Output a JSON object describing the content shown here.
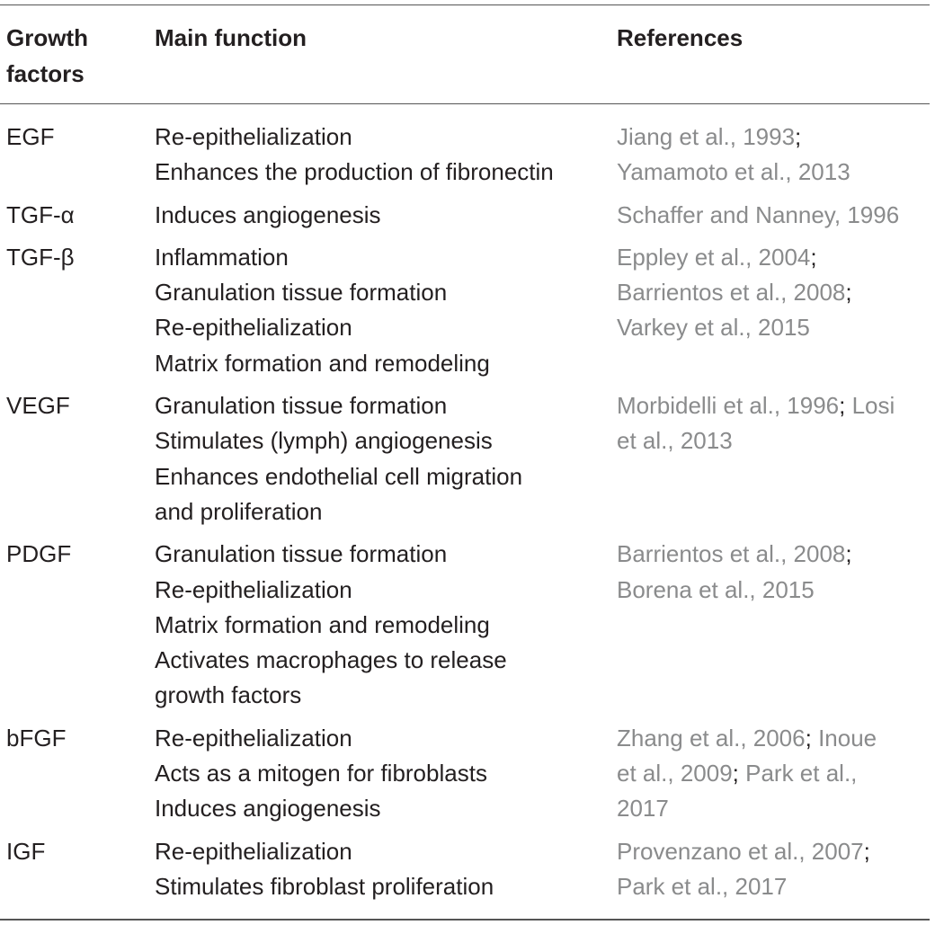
{
  "table": {
    "headers": {
      "factor_line1": "Growth",
      "factor_line2": "factors",
      "function": "Main function",
      "references": "References"
    },
    "rows": [
      {
        "factor": "EGF",
        "functions": [
          "Re-epithelialization",
          "Enhances the production of fibronectin"
        ],
        "refs": [
          {
            "text": "Jiang et al., 1993",
            "sep": ";"
          },
          {
            "text": "Yamamoto et al., 2013",
            "sep": ""
          }
        ]
      },
      {
        "factor": "TGF-α",
        "functions": [
          "Induces angiogenesis"
        ],
        "refs": [
          {
            "text": "Schaffer and Nanney, 1996",
            "sep": ""
          }
        ]
      },
      {
        "factor": "TGF-β",
        "functions": [
          "Inflammation",
          "Granulation tissue formation",
          "Re-epithelialization",
          "Matrix formation and remodeling"
        ],
        "refs": [
          {
            "text": "Eppley et al., 2004",
            "sep": ";"
          },
          {
            "text": "Barrientos et al., 2008",
            "sep": ";"
          },
          {
            "text": "Varkey et al., 2015",
            "sep": ""
          }
        ]
      },
      {
        "factor": "VEGF",
        "functions": [
          "Granulation tissue formation",
          "Stimulates (lymph) angiogenesis",
          "Enhances endothelial cell migration",
          "and proliferation"
        ],
        "refs": [
          {
            "text": "Morbidelli et al., 1996",
            "sep": ";",
            "tail": " Losi"
          },
          {
            "text": "et al., 2013",
            "sep": ""
          }
        ]
      },
      {
        "factor": "PDGF",
        "functions": [
          "Granulation tissue formation",
          "Re-epithelialization",
          "Matrix formation and remodeling",
          "Activates macrophages to release",
          "growth factors"
        ],
        "refs": [
          {
            "text": "Barrientos et al., 2008",
            "sep": ";"
          },
          {
            "text": "Borena et al., 2015",
            "sep": ""
          }
        ]
      },
      {
        "factor": "bFGF",
        "functions": [
          "Re-epithelialization",
          "Acts as a mitogen for fibroblasts",
          "Induces angiogenesis"
        ],
        "refs": [
          {
            "text": "Zhang et al., 2006",
            "sep": ";",
            "tail": " Inoue"
          },
          {
            "text": "et al., 2009",
            "sep": ";",
            "tail": " Park et al.,"
          },
          {
            "text": "2017",
            "sep": ""
          }
        ]
      },
      {
        "factor": "IGF",
        "functions": [
          "Re-epithelialization",
          "Stimulates fibroblast proliferation"
        ],
        "refs": [
          {
            "text": "Provenzano et al., 2007",
            "sep": ";"
          },
          {
            "text": "Park et al., 2017",
            "sep": ""
          }
        ]
      }
    ]
  }
}
